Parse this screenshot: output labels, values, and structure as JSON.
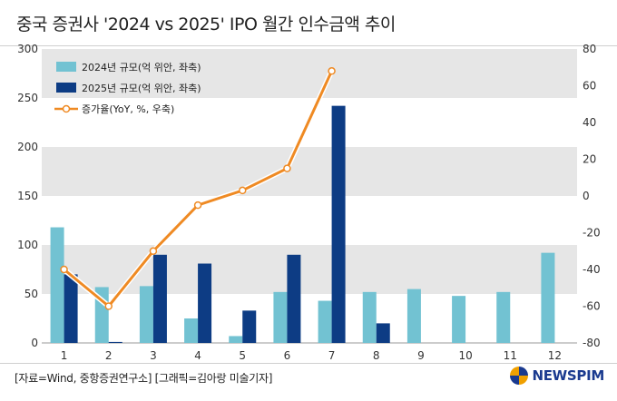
{
  "header": {
    "title": "중국 증권사 '2024 vs 2025' IPO 월간 인수금액 추이"
  },
  "chart_data": {
    "type": "bar",
    "categories": [
      "1",
      "2",
      "3",
      "4",
      "5",
      "6",
      "7",
      "8",
      "9",
      "10",
      "11",
      "12"
    ],
    "series": [
      {
        "name": "2024년 규모(억 위안, 좌축)",
        "type": "bar",
        "axis": "left",
        "color": "#72c2d2",
        "values": [
          118,
          57,
          58,
          25,
          7,
          52,
          43,
          52,
          55,
          48,
          52,
          92
        ]
      },
      {
        "name": "2025년 규모(억 위안, 좌축)",
        "type": "bar",
        "axis": "left",
        "color": "#0d3c84",
        "values": [
          70,
          1,
          90,
          81,
          33,
          90,
          242,
          20,
          null,
          null,
          null,
          null
        ]
      },
      {
        "name": "증가율(YoY, %, 우축)",
        "type": "line",
        "axis": "right",
        "color": "#ef8a23",
        "values": [
          -40,
          -60,
          -30,
          -5,
          3,
          15,
          68,
          null,
          null,
          null,
          null,
          null
        ]
      }
    ],
    "y_left": {
      "min": 0,
      "max": 300,
      "ticks": [
        "0",
        "50",
        "100",
        "150",
        "200",
        "250",
        "300"
      ]
    },
    "y_right": {
      "min": -80,
      "max": 80,
      "ticks": [
        "-80",
        "-60",
        "-40",
        "-20",
        "0",
        "20",
        "40",
        "60",
        "80"
      ]
    },
    "grid": "alternating horizontal bands",
    "legend_position": "top-left"
  },
  "footer": {
    "source": "[자료=Wind, 중항증권연구소] [그래픽=김아랑 미술기자]",
    "logo_text": "NEWSPIM"
  }
}
